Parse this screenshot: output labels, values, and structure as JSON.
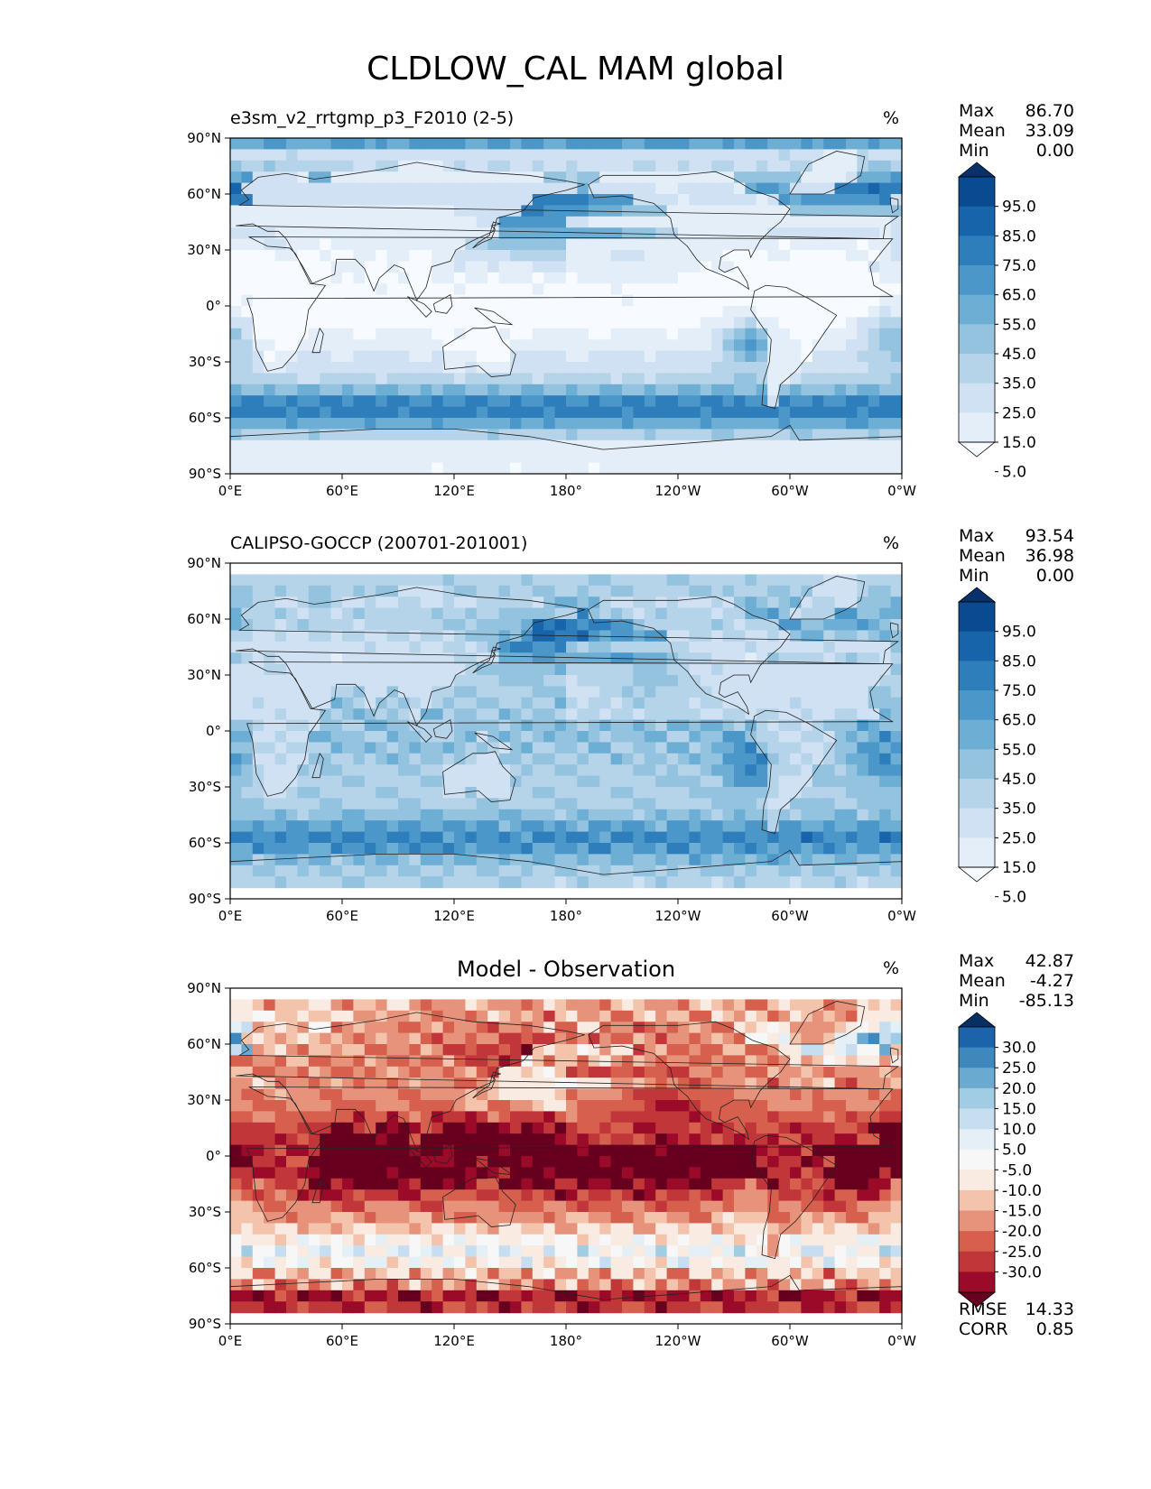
{
  "title": "CLDLOW_CAL MAM global",
  "colors": {
    "blues": [
      "#f7fbff",
      "#e3eef9",
      "#cfe1f2",
      "#b5d4e9",
      "#93c3df",
      "#6daed5",
      "#4b97c9",
      "#2f7ebc",
      "#1864aa",
      "#0a4a90",
      "#08306b"
    ],
    "diff": [
      "#67001f",
      "#9b0a28",
      "#c13639",
      "#d6604d",
      "#e7927a",
      "#f4c3ab",
      "#f9eae2",
      "#f7f7f7",
      "#e4eff6",
      "#c7def0",
      "#a0cce4",
      "#6aaad0",
      "#3e88bd",
      "#1c64aa",
      "#053061"
    ]
  },
  "panels": [
    {
      "name": "model",
      "title": "e3sm_v2_rrtgmp_p3_F2010 (2-5)",
      "units": "%",
      "stats": [
        {
          "label": "Max",
          "value": "86.70"
        },
        {
          "label": "Mean",
          "value": "33.09"
        },
        {
          "label": "Min",
          "value": "0.00"
        }
      ],
      "colorbar": {
        "labels": [
          "95.0",
          "85.0",
          "75.0",
          "65.0",
          "55.0",
          "45.0",
          "35.0",
          "25.0",
          "15.0",
          "5.0"
        ]
      }
    },
    {
      "name": "obs",
      "title": "CALIPSO-GOCCP (200701-201001)",
      "units": "%",
      "stats": [
        {
          "label": "Max",
          "value": "93.54"
        },
        {
          "label": "Mean",
          "value": "36.98"
        },
        {
          "label": "Min",
          "value": "0.00"
        }
      ],
      "colorbar": {
        "labels": [
          "95.0",
          "85.0",
          "75.0",
          "65.0",
          "55.0",
          "45.0",
          "35.0",
          "25.0",
          "15.0",
          "5.0"
        ]
      }
    },
    {
      "name": "diff",
      "title": "Model - Observation",
      "units": "%",
      "stats": [
        {
          "label": "Max",
          "value": "42.87"
        },
        {
          "label": "Mean",
          "value": "-4.27"
        },
        {
          "label": "Min",
          "value": "-85.13"
        }
      ],
      "extra_stats": [
        {
          "label": "RMSE",
          "value": "14.33"
        },
        {
          "label": "CORR",
          "value": "0.85"
        }
      ],
      "colorbar": {
        "labels": [
          "30.0",
          "25.0",
          "20.0",
          "15.0",
          "10.0",
          "5.0",
          "-5.0",
          "-10.0",
          "-15.0",
          "-20.0",
          "-25.0",
          "-30.0"
        ]
      }
    }
  ],
  "chart_data": {
    "type": "heatmap",
    "title": "CLDLOW_CAL MAM global",
    "projection": "PlateCarree",
    "x_ticks": [
      "0°E",
      "60°E",
      "120°E",
      "180°",
      "120°W",
      "60°W",
      "0°W"
    ],
    "y_ticks": [
      "90°N",
      "60°N",
      "30°N",
      "0°",
      "30°S",
      "60°S",
      "90°S"
    ],
    "xlim": [
      0,
      360
    ],
    "ylim": [
      -90,
      90
    ],
    "description_series": [
      {
        "name": "e3sm_v2_rrtgmp_p3_F2010 (2-5)",
        "levels": [
          5,
          15,
          25,
          35,
          45,
          55,
          65,
          75,
          85,
          95
        ],
        "max": 86.7,
        "mean": 33.09,
        "min": 0.0
      },
      {
        "name": "CALIPSO-GOCCP (200701-201001)",
        "levels": [
          5,
          15,
          25,
          35,
          45,
          55,
          65,
          75,
          85,
          95
        ],
        "max": 93.54,
        "mean": 36.98,
        "min": 0.0
      },
      {
        "name": "Model - Observation",
        "levels": [
          -30,
          -25,
          -20,
          -15,
          -10,
          -5,
          5,
          10,
          15,
          20,
          25,
          30
        ],
        "max": 42.87,
        "mean": -4.27,
        "min": -85.13,
        "rmse": 14.33,
        "corr": 0.85
      }
    ]
  }
}
